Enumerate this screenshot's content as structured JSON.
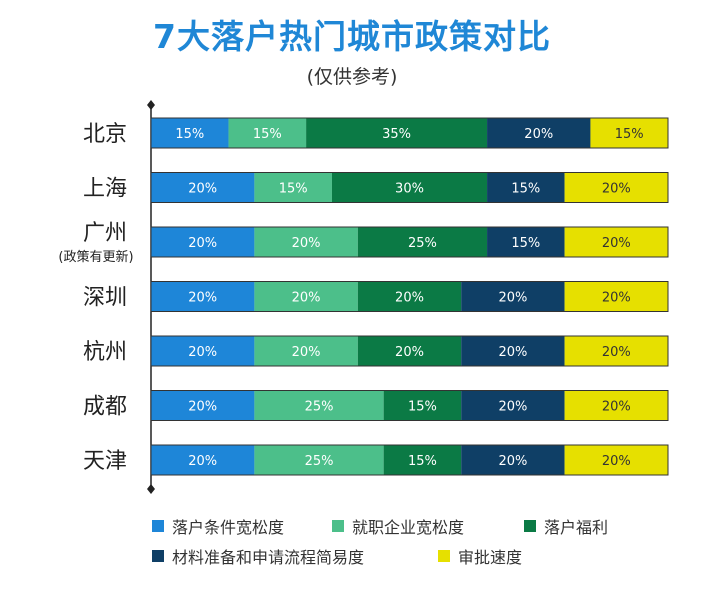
{
  "title": "7大落户热门城市政策对比",
  "subtitle": "(仅供参考)",
  "chart_data": {
    "type": "bar",
    "orientation": "horizontal",
    "stacked": true,
    "normalized_percent": true,
    "categories": [
      "北京",
      "上海",
      "广州",
      "深圳",
      "杭州",
      "成都",
      "天津"
    ],
    "category_notes": [
      "",
      "",
      "(政策有更新)",
      "",
      "",
      "",
      ""
    ],
    "series": [
      {
        "name": "落户条件宽松度",
        "color": "#1e86d8",
        "values": [
          15,
          20,
          20,
          20,
          20,
          20,
          20
        ]
      },
      {
        "name": "就职企业宽松度",
        "color": "#4cbf8a",
        "values": [
          15,
          15,
          20,
          20,
          20,
          25,
          25
        ]
      },
      {
        "name": "落户福利",
        "color": "#0b7a45",
        "values": [
          35,
          30,
          25,
          20,
          20,
          15,
          15
        ]
      },
      {
        "name": "材料准备和申请流程简易度",
        "color": "#0f3f66",
        "values": [
          20,
          15,
          15,
          20,
          20,
          20,
          20
        ]
      },
      {
        "name": "审批速度",
        "color": "#e6e000",
        "values": [
          15,
          20,
          20,
          20,
          20,
          20,
          20
        ]
      }
    ],
    "value_labels": [
      [
        "15%",
        "15%",
        "35%",
        "20%",
        "15%"
      ],
      [
        "20%",
        "15%",
        "30%",
        "15%",
        "20%"
      ],
      [
        "20%",
        "20%",
        "25%",
        "15%",
        "20%"
      ],
      [
        "20%",
        "20%",
        "20%",
        "20%",
        "20%"
      ],
      [
        "20%",
        "20%",
        "20%",
        "20%",
        "20%"
      ],
      [
        "20%",
        "25%",
        "15%",
        "20%",
        "20%"
      ],
      [
        "20%",
        "25%",
        "15%",
        "20%",
        "20%"
      ]
    ],
    "xlim": [
      0,
      100
    ],
    "grid": false,
    "legend_position": "bottom"
  }
}
